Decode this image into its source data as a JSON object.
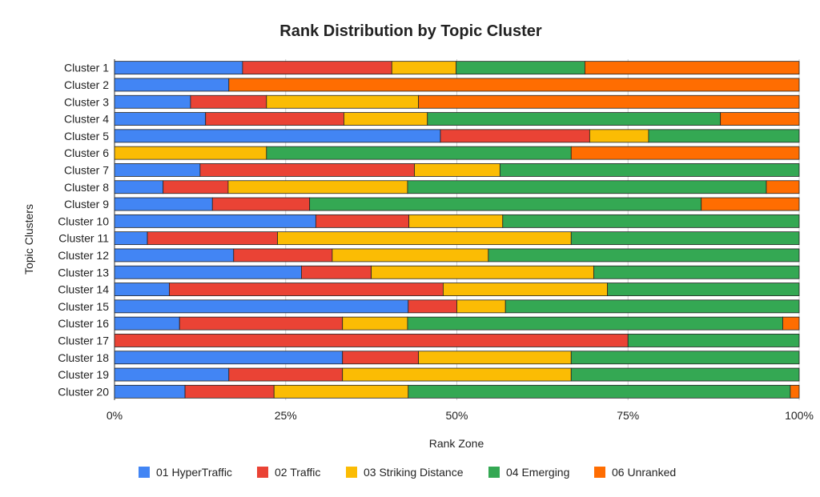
{
  "chart_data": {
    "type": "bar",
    "orientation": "horizontal",
    "stacked": "percent",
    "title": "Rank Distribution by Topic Cluster",
    "xlabel": "Rank Zone",
    "ylabel": "Topic Clusters",
    "xlim": [
      0,
      100
    ],
    "x_ticks": [
      "0%",
      "25%",
      "50%",
      "75%",
      "100%"
    ],
    "legend_position": "bottom",
    "grid": "vertical",
    "categories": [
      "Cluster 1",
      "Cluster 2",
      "Cluster 3",
      "Cluster 4",
      "Cluster 5",
      "Cluster 6",
      "Cluster 7",
      "Cluster 8",
      "Cluster 9",
      "Cluster 10",
      "Cluster 11",
      "Cluster 12",
      "Cluster 13",
      "Cluster 14",
      "Cluster 15",
      "Cluster 16",
      "Cluster 17",
      "Cluster 18",
      "Cluster 19",
      "Cluster 20"
    ],
    "series": [
      {
        "name": "01 HyperTraffic",
        "color": "#4285F4",
        "values": [
          18.7,
          16.7,
          11.1,
          13.3,
          47.6,
          0,
          12.5,
          7.1,
          14.3,
          29.4,
          4.8,
          17.4,
          27.3,
          8.0,
          42.9,
          9.5,
          0,
          33.3,
          16.7,
          10.3
        ]
      },
      {
        "name": "02 Traffic",
        "color": "#EA4335",
        "values": [
          21.8,
          0,
          11.1,
          20.2,
          21.8,
          0,
          31.3,
          9.5,
          14.2,
          13.6,
          19.0,
          14.4,
          10.2,
          40.0,
          7.1,
          23.8,
          75.0,
          11.1,
          16.6,
          13.0
        ]
      },
      {
        "name": "03 Striking Distance",
        "color": "#FBBC04",
        "values": [
          9.4,
          0,
          22.2,
          12.2,
          8.6,
          22.2,
          12.5,
          26.2,
          0,
          13.7,
          42.9,
          22.8,
          32.5,
          24.0,
          7.1,
          9.5,
          0,
          22.3,
          33.4,
          19.6
        ]
      },
      {
        "name": "04 Emerging",
        "color": "#34A853",
        "values": [
          18.8,
          0,
          0,
          42.8,
          22.0,
          44.5,
          43.7,
          52.4,
          57.2,
          43.3,
          33.3,
          45.4,
          30.0,
          28.0,
          42.9,
          54.8,
          25.0,
          33.3,
          33.3,
          55.8
        ]
      },
      {
        "name": "06 Unranked",
        "color": "#FF6D01",
        "values": [
          31.3,
          83.3,
          55.6,
          11.5,
          0,
          33.3,
          0,
          4.8,
          14.3,
          0,
          0,
          0,
          0,
          0,
          0,
          2.4,
          0,
          0,
          0,
          1.3
        ]
      }
    ]
  }
}
